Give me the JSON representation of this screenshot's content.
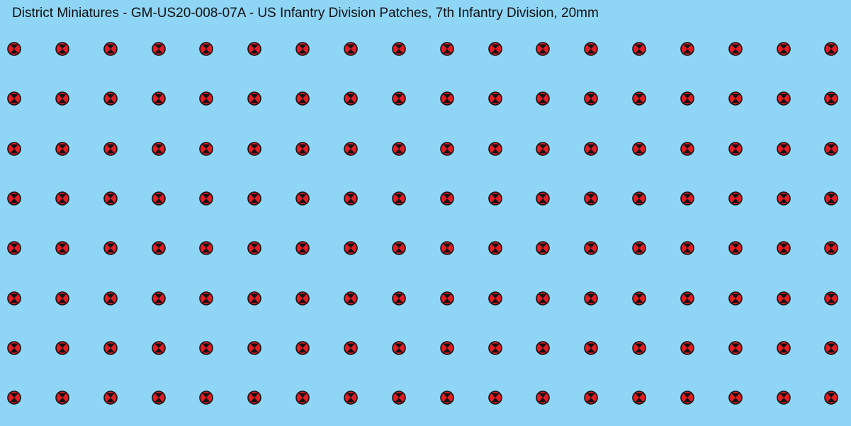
{
  "sheet": {
    "title": "District Miniatures - GM-US20-008-07A - US Infantry Division Patches, 7th Infantry Division, 20mm",
    "background_color": "#8fd6f6",
    "patch_icon": "7th-infantry-division-patch-icon",
    "patch_colors": {
      "red": "#e31b23",
      "black": "#111111"
    },
    "rows": 8,
    "columns": 18
  }
}
